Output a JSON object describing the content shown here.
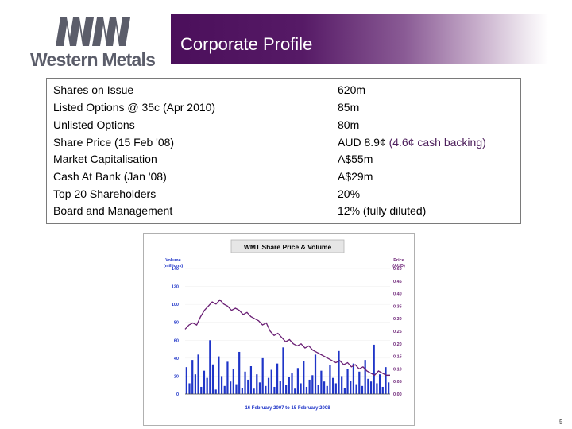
{
  "company": {
    "logo_text": "Western Metals"
  },
  "banner": {
    "title": "Corporate Profile",
    "colors": {
      "dark": "#4b0f5b",
      "mid": "#8a5b95"
    }
  },
  "profile": {
    "rows": [
      {
        "label": "Shares on Issue",
        "value": "620m"
      },
      {
        "label": "Listed Options @ 35c (Apr 2010)",
        "value": "85m"
      },
      {
        "label": "Unlisted Options",
        "value": "80m"
      },
      {
        "label": "Share Price (15 Feb '08)",
        "value": "AUD 8.9¢",
        "note": "(4.6¢ cash backing)"
      },
      {
        "label": "Market Capitalisation",
        "value": "A$55m"
      },
      {
        "label": "Cash At Bank (Jan '08)",
        "value": "A$29m"
      },
      {
        "label": "Top 20 Shareholders",
        "value": "20%"
      },
      {
        "label": "Board and Management",
        "value": "12% (fully diluted)"
      }
    ]
  },
  "chart_data": {
    "type": "line",
    "title": "WMT Share Price & Volume",
    "subtitle": "16 February 2007 to 15 February 2008",
    "left_axis_label": [
      "Volume",
      "(millions)"
    ],
    "right_axis_label": [
      "Price",
      "(AUD)"
    ],
    "left_ticks": [
      "140",
      "120",
      "100",
      "80",
      "60",
      "40",
      "20",
      "0"
    ],
    "right_ticks": [
      "0.60",
      "0.45",
      "0.40",
      "0.35",
      "0.30",
      "0.25",
      "0.20",
      "0.15",
      "0.10",
      "0.05",
      "0.00"
    ],
    "ylim_volume": [
      0,
      140
    ],
    "ylim_price": [
      0,
      0.6
    ],
    "colors": {
      "price": "#6a1f74",
      "volume": "#1f35c8"
    },
    "price_series": {
      "name": "Price",
      "values": [
        0.31,
        0.33,
        0.34,
        0.33,
        0.37,
        0.4,
        0.42,
        0.44,
        0.43,
        0.45,
        0.43,
        0.42,
        0.4,
        0.41,
        0.4,
        0.38,
        0.39,
        0.37,
        0.36,
        0.35,
        0.33,
        0.34,
        0.3,
        0.28,
        0.29,
        0.27,
        0.25,
        0.26,
        0.24,
        0.23,
        0.24,
        0.22,
        0.23,
        0.21,
        0.2,
        0.19,
        0.18,
        0.17,
        0.16,
        0.15,
        0.16,
        0.14,
        0.15,
        0.13,
        0.14,
        0.12,
        0.13,
        0.11,
        0.1,
        0.09,
        0.11,
        0.1,
        0.09,
        0.09
      ]
    },
    "volume_series": {
      "name": "Volume",
      "values": [
        30,
        12,
        38,
        22,
        44,
        8,
        26,
        18,
        60,
        33,
        5,
        42,
        20,
        9,
        36,
        14,
        28,
        11,
        47,
        7,
        25,
        16,
        31,
        6,
        22,
        13,
        40,
        9,
        18,
        27,
        8,
        34,
        15,
        52,
        10,
        19,
        23,
        6,
        29,
        12,
        37,
        8,
        16,
        21,
        44,
        10,
        26,
        14,
        9,
        32,
        18,
        12,
        48,
        20,
        7,
        28,
        15,
        34,
        11,
        25,
        9,
        38,
        17,
        14,
        55,
        12,
        22,
        8,
        30,
        13
      ]
    }
  },
  "footer": {
    "page_number": "5"
  }
}
